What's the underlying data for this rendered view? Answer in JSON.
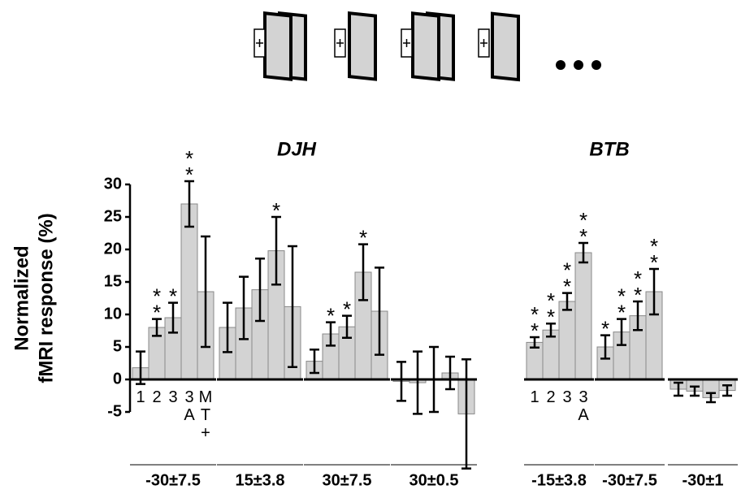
{
  "chart_data": [
    {
      "type": "bar",
      "title": "DJH",
      "ylabel": [
        "Normalized",
        "fMRI response (%)"
      ],
      "color": "#d3d3d3",
      "ylim": [
        -5,
        30
      ],
      "yticks": [
        -5,
        0,
        5,
        10,
        15,
        20,
        25,
        30
      ],
      "categories": [
        "1",
        "2",
        "3",
        "3A",
        "MT+"
      ],
      "groups": [
        {
          "label": "-30±7.5",
          "values": [
            1.8,
            8,
            9.5,
            27,
            13.5
          ],
          "errors": [
            2.5,
            1.3,
            2.3,
            3.5,
            8.5
          ],
          "stars": [
            null,
            "**",
            "*",
            "**",
            null
          ]
        },
        {
          "label": "15±3.8",
          "values": [
            8,
            11,
            13.8,
            19.8,
            11.2
          ],
          "errors": [
            3.8,
            4.8,
            4.8,
            5.2,
            9.3
          ],
          "stars": [
            null,
            null,
            null,
            "*",
            null
          ]
        },
        {
          "label": "30±7.5",
          "values": [
            2.8,
            7,
            8.1,
            16.5,
            10.5
          ],
          "errors": [
            1.8,
            1.8,
            1.7,
            4.3,
            6.7
          ],
          "stars": [
            null,
            "*",
            "*",
            "*",
            null
          ]
        },
        {
          "label": "30±0.5",
          "values": [
            -0.3,
            -0.5,
            0,
            1,
            -5.3
          ],
          "errors": [
            3,
            4.8,
            5,
            2.5,
            8.4
          ],
          "stars": [
            null,
            null,
            null,
            null,
            null
          ]
        }
      ]
    },
    {
      "type": "bar",
      "title": "BTB",
      "color": "#d3d3d3",
      "ylim": [
        -5,
        30
      ],
      "categories": [
        "1",
        "2",
        "3",
        "3A"
      ],
      "groups": [
        {
          "label": "-15±3.8",
          "values": [
            5.7,
            7.6,
            12,
            19.5
          ],
          "errors": [
            0.8,
            1,
            1.3,
            1.5
          ],
          "stars": [
            "**",
            "**",
            "**",
            "**"
          ]
        },
        {
          "label": "-30±7.5",
          "values": [
            5,
            7.3,
            9.8,
            13.5
          ],
          "errors": [
            1.8,
            2,
            2.2,
            3.5
          ],
          "stars": [
            "*",
            "**",
            "**",
            "**"
          ]
        },
        {
          "label": "-30±1",
          "values": [
            -1.5,
            -1.8,
            -2.8,
            -1.7
          ],
          "errors": [
            1,
            0.7,
            0.7,
            0.8
          ],
          "stars": [
            null,
            null,
            null,
            null
          ]
        }
      ]
    }
  ]
}
